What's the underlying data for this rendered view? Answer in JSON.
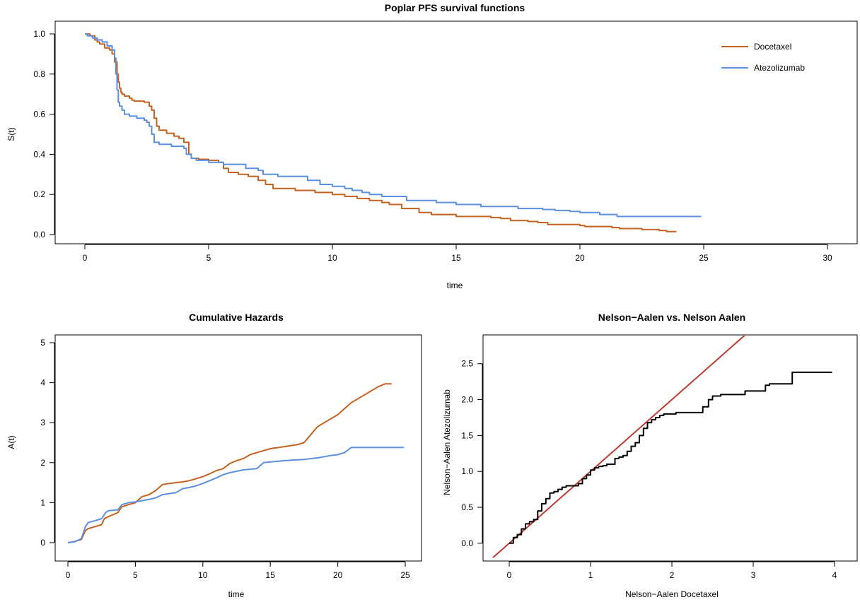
{
  "colors": {
    "docetaxel": "#C5621F",
    "atezolizumab": "#5B8FE0",
    "nelson": "#000000",
    "reference": "#C0392F"
  },
  "chart_data": [
    {
      "id": "survival",
      "type": "line",
      "step": true,
      "title": "Poplar PFS survival functions",
      "xlabel": "time",
      "ylabel": "S(t)",
      "xlim": [
        0,
        30
      ],
      "ylim": [
        0,
        1
      ],
      "xticks": [
        "0",
        "5",
        "10",
        "15",
        "20",
        "25",
        "30"
      ],
      "yticks": [
        "0.0",
        "0.2",
        "0.4",
        "0.6",
        "0.8",
        "1.0"
      ],
      "grid": false,
      "legend": "top-right",
      "series": [
        {
          "name": "Docetaxel",
          "color": "#C5621F",
          "x": [
            0,
            0.2,
            0.4,
            0.5,
            0.6,
            0.8,
            1.0,
            1.1,
            1.2,
            1.3,
            1.35,
            1.4,
            1.45,
            1.5,
            1.6,
            1.8,
            1.9,
            2.0,
            2.4,
            2.6,
            2.7,
            2.8,
            2.9,
            3.0,
            3.3,
            3.6,
            3.8,
            4.0,
            4.2,
            4.3,
            4.6,
            5.0,
            5.4,
            5.6,
            5.8,
            6.2,
            6.6,
            7.0,
            7.3,
            7.6,
            8.5,
            9.3,
            10.0,
            10.5,
            11.0,
            11.5,
            12.0,
            12.3,
            12.8,
            13.5,
            14.0,
            15.0,
            16.4,
            16.8,
            17.2,
            17.9,
            18.3,
            18.7,
            19.5,
            20.0,
            20.2,
            20.5,
            20.7,
            21.0,
            21.3,
            21.6,
            22.0,
            22.5,
            23.0,
            23.2,
            23.5,
            23.9
          ],
          "y": [
            1.0,
            0.99,
            0.97,
            0.96,
            0.95,
            0.93,
            0.92,
            0.9,
            0.86,
            0.8,
            0.76,
            0.73,
            0.71,
            0.7,
            0.69,
            0.68,
            0.67,
            0.665,
            0.66,
            0.64,
            0.62,
            0.58,
            0.54,
            0.52,
            0.505,
            0.49,
            0.48,
            0.46,
            0.4,
            0.38,
            0.375,
            0.37,
            0.36,
            0.33,
            0.31,
            0.3,
            0.29,
            0.27,
            0.25,
            0.23,
            0.22,
            0.21,
            0.2,
            0.19,
            0.18,
            0.17,
            0.16,
            0.15,
            0.13,
            0.11,
            0.1,
            0.09,
            0.085,
            0.08,
            0.07,
            0.065,
            0.06,
            0.05,
            0.05,
            0.045,
            0.04,
            0.04,
            0.04,
            0.04,
            0.035,
            0.03,
            0.03,
            0.025,
            0.025,
            0.02,
            0.015,
            0.015
          ]
        },
        {
          "name": "Atezolizumab",
          "color": "#5B8FE0",
          "x": [
            0,
            0.1,
            0.3,
            0.5,
            0.7,
            0.9,
            1.1,
            1.2,
            1.25,
            1.3,
            1.35,
            1.4,
            1.5,
            1.6,
            1.8,
            2.1,
            2.4,
            2.5,
            2.6,
            2.7,
            2.8,
            3.0,
            3.5,
            4.0,
            4.1,
            4.3,
            4.5,
            5.0,
            5.6,
            6.5,
            7.0,
            7.2,
            7.8,
            9.0,
            9.5,
            10.0,
            10.5,
            10.8,
            11.2,
            11.5,
            12.0,
            13.0,
            14.2,
            15.0,
            16.0,
            17.5,
            18.5,
            19.0,
            19.6,
            20.0,
            20.8,
            21.5,
            24.9
          ],
          "y": [
            1.0,
            0.99,
            0.98,
            0.97,
            0.96,
            0.94,
            0.92,
            0.88,
            0.8,
            0.72,
            0.66,
            0.64,
            0.62,
            0.6,
            0.59,
            0.58,
            0.57,
            0.56,
            0.54,
            0.5,
            0.46,
            0.45,
            0.44,
            0.43,
            0.4,
            0.38,
            0.37,
            0.36,
            0.35,
            0.33,
            0.32,
            0.3,
            0.29,
            0.27,
            0.25,
            0.24,
            0.23,
            0.22,
            0.21,
            0.2,
            0.19,
            0.17,
            0.16,
            0.15,
            0.14,
            0.13,
            0.125,
            0.12,
            0.115,
            0.11,
            0.1,
            0.09,
            0.09
          ]
        }
      ]
    },
    {
      "id": "hazards",
      "type": "line",
      "title": "Cumulative Hazards",
      "xlabel": "time",
      "ylabel": "A(t)",
      "xlim": [
        0,
        25
      ],
      "ylim": [
        0,
        5
      ],
      "xticks": [
        "0",
        "5",
        "10",
        "15",
        "20",
        "25"
      ],
      "yticks": [
        "0",
        "1",
        "2",
        "3",
        "4",
        "5"
      ],
      "grid": false,
      "series": [
        {
          "name": "Docetaxel",
          "color": "#C5621F",
          "x": [
            0,
            0.5,
            1.0,
            1.3,
            1.5,
            2.0,
            2.5,
            2.7,
            3.0,
            3.7,
            4.0,
            4.5,
            5.0,
            5.5,
            6.0,
            6.5,
            7.0,
            7.5,
            8.5,
            9.0,
            9.5,
            10.0,
            10.5,
            11.0,
            11.5,
            12.0,
            12.5,
            13.0,
            13.5,
            14.0,
            14.5,
            15.0,
            16.0,
            17.0,
            17.5,
            18.0,
            18.5,
            19.0,
            20.0,
            21.0,
            22.0,
            23.0,
            23.5,
            24.0
          ],
          "y": [
            0,
            0.03,
            0.08,
            0.3,
            0.35,
            0.4,
            0.45,
            0.6,
            0.65,
            0.75,
            0.9,
            0.95,
            1.0,
            1.15,
            1.2,
            1.3,
            1.45,
            1.48,
            1.52,
            1.55,
            1.6,
            1.65,
            1.72,
            1.8,
            1.85,
            1.98,
            2.05,
            2.1,
            2.2,
            2.25,
            2.3,
            2.35,
            2.4,
            2.45,
            2.5,
            2.7,
            2.9,
            3.0,
            3.2,
            3.5,
            3.7,
            3.9,
            3.97,
            3.97
          ]
        },
        {
          "name": "Atezolizumab",
          "color": "#5B8FE0",
          "x": [
            0,
            0.5,
            1.0,
            1.3,
            1.5,
            2.0,
            2.5,
            2.8,
            3.0,
            3.7,
            4.0,
            4.5,
            5.0,
            5.5,
            6.0,
            6.5,
            7.0,
            8.0,
            8.5,
            9.0,
            9.5,
            10.0,
            10.5,
            11.0,
            11.5,
            12.0,
            13.0,
            14.0,
            14.5,
            15.0,
            16.0,
            17.0,
            17.5,
            18.0,
            18.5,
            19.0,
            19.5,
            20.0,
            20.5,
            21.0,
            22.0,
            23.0,
            24.9
          ],
          "y": [
            0,
            0.02,
            0.1,
            0.4,
            0.5,
            0.55,
            0.6,
            0.75,
            0.8,
            0.82,
            0.95,
            1.0,
            1.02,
            1.05,
            1.08,
            1.12,
            1.2,
            1.25,
            1.35,
            1.38,
            1.42,
            1.48,
            1.55,
            1.62,
            1.7,
            1.75,
            1.82,
            1.85,
            2.0,
            2.02,
            2.05,
            2.07,
            2.08,
            2.1,
            2.12,
            2.15,
            2.18,
            2.2,
            2.25,
            2.38,
            2.38,
            2.38,
            2.38
          ]
        }
      ]
    },
    {
      "id": "nelson",
      "type": "line",
      "step": true,
      "title": "Nelson−Aalen vs. Nelson Aalen",
      "xlabel": "Nelson−Aalen Docetaxel",
      "ylabel": "Nelson−Aalen Atezolizumab",
      "xlim": [
        -0.2,
        4.2
      ],
      "ylim": [
        -0.1,
        2.95
      ],
      "xticks": [
        "0",
        "1",
        "2",
        "3",
        "4"
      ],
      "yticks": [
        "0.0",
        "0.5",
        "1.0",
        "1.5",
        "2.0",
        "2.5"
      ],
      "grid": false,
      "reference_line": {
        "intercept": 0,
        "slope": 1,
        "color": "#C0392F"
      },
      "series": [
        {
          "color": "#000000",
          "x": [
            0.0,
            0.05,
            0.1,
            0.15,
            0.2,
            0.25,
            0.3,
            0.35,
            0.4,
            0.45,
            0.5,
            0.55,
            0.6,
            0.65,
            0.7,
            0.75,
            0.8,
            0.85,
            0.9,
            0.95,
            1.0,
            1.05,
            1.1,
            1.15,
            1.2,
            1.3,
            1.35,
            1.4,
            1.45,
            1.5,
            1.55,
            1.6,
            1.65,
            1.7,
            1.75,
            1.8,
            1.85,
            1.9,
            1.95,
            2.0,
            2.05,
            2.1,
            2.35,
            2.38,
            2.45,
            2.5,
            2.6,
            2.7,
            2.8,
            2.9,
            3.0,
            3.1,
            3.15,
            3.2,
            3.4,
            3.48,
            3.6,
            3.8,
            3.97
          ],
          "y": [
            0.0,
            0.08,
            0.12,
            0.2,
            0.27,
            0.3,
            0.33,
            0.45,
            0.55,
            0.62,
            0.7,
            0.72,
            0.75,
            0.78,
            0.8,
            0.8,
            0.8,
            0.83,
            0.9,
            0.95,
            1.02,
            1.05,
            1.07,
            1.08,
            1.1,
            1.18,
            1.2,
            1.22,
            1.28,
            1.35,
            1.4,
            1.5,
            1.6,
            1.68,
            1.72,
            1.75,
            1.78,
            1.8,
            1.8,
            1.8,
            1.82,
            1.82,
            1.82,
            1.9,
            2.0,
            2.05,
            2.07,
            2.07,
            2.07,
            2.12,
            2.12,
            2.12,
            2.2,
            2.22,
            2.22,
            2.38,
            2.38,
            2.38,
            2.38
          ]
        }
      ]
    }
  ]
}
